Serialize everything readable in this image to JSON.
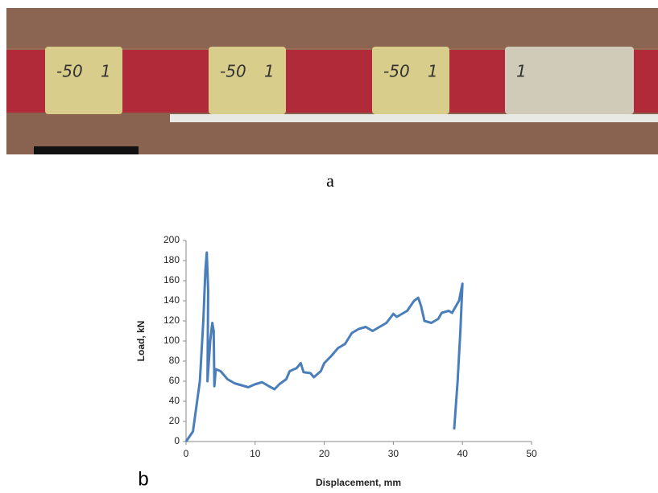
{
  "figure": {
    "label_a": "a",
    "label_b": "b"
  },
  "photos": [
    [
      "-50",
      "1"
    ],
    [
      "-50",
      "1"
    ],
    [
      "-50",
      "1"
    ],
    [
      "1"
    ]
  ],
  "chart_data": {
    "type": "line",
    "color": "#4a7ebb",
    "x_label": "Displacement, mm",
    "y_label": "Load, kN",
    "x": [
      0,
      1,
      2,
      2.5,
      2.8,
      3,
      3.2,
      3.1,
      3.5,
      3.8,
      4,
      4.1,
      4.3,
      5,
      6,
      7,
      8,
      9,
      10,
      11,
      12,
      12.8,
      13.5,
      14.5,
      15,
      16,
      16.6,
      17,
      18,
      18.5,
      19.5,
      20,
      21,
      22,
      23,
      24,
      25,
      26,
      27,
      28,
      29,
      30,
      30.5,
      32,
      33,
      33.6,
      34,
      34.5,
      35.5,
      36.5,
      37,
      38,
      38.5,
      39.5,
      40,
      39.7,
      39.3,
      38.8
    ],
    "values": [
      0,
      10,
      60,
      120,
      170,
      188,
      150,
      60,
      100,
      118,
      110,
      55,
      72,
      70,
      62,
      58,
      56,
      54,
      57,
      59,
      55,
      52,
      57,
      62,
      70,
      73,
      78,
      69,
      68,
      64,
      70,
      78,
      85,
      93,
      97,
      108,
      112,
      114,
      110,
      114,
      118,
      127,
      124,
      130,
      140,
      143,
      135,
      120,
      118,
      122,
      128,
      130,
      128,
      140,
      157,
      110,
      60,
      12
    ],
    "xlim": [
      0,
      50
    ],
    "xticks": [
      0,
      10,
      20,
      30,
      40,
      50
    ],
    "ylim": [
      0,
      200
    ],
    "yticks": [
      0,
      20,
      40,
      60,
      80,
      100,
      120,
      140,
      160,
      180,
      200
    ]
  }
}
